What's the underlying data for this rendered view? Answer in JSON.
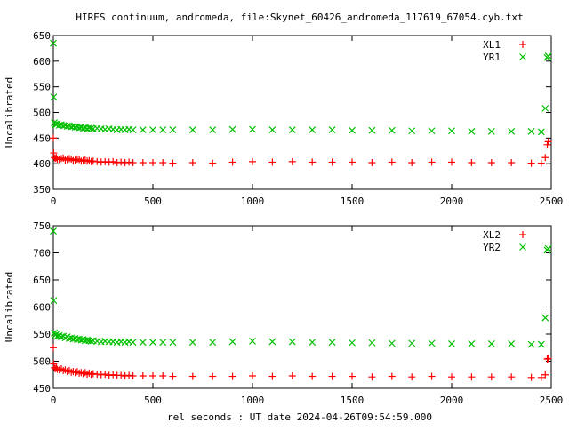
{
  "colors": {
    "series1": "#ff0000",
    "series2": "#00c000",
    "axis": "#000000",
    "background": "#ffffff"
  },
  "chart_data": [
    {
      "type": "scatter",
      "title": "HIRES continuum, andromeda, file:Skynet_60426_andromeda_117619_67054.cyb.txt",
      "xlabel": "",
      "ylabel": "Uncalibrated",
      "xlim": [
        0,
        2500
      ],
      "ylim": [
        350,
        650
      ],
      "xticks": [
        "0",
        "500",
        "1000",
        "1500",
        "2000",
        "2500"
      ],
      "yticks": [
        "350",
        "400",
        "450",
        "500",
        "550",
        "600",
        "650"
      ],
      "grid": false,
      "legend_position": "top-right",
      "series": [
        {
          "name": "XL1",
          "marker": "plus",
          "x": [
            0,
            2,
            5,
            10,
            15,
            20,
            30,
            40,
            50,
            60,
            70,
            80,
            90,
            100,
            110,
            120,
            130,
            140,
            150,
            160,
            170,
            180,
            190,
            200,
            220,
            240,
            260,
            280,
            300,
            320,
            340,
            360,
            380,
            400,
            450,
            500,
            550,
            600,
            700,
            800,
            900,
            1000,
            1100,
            1200,
            1300,
            1400,
            1500,
            1600,
            1700,
            1800,
            1900,
            2000,
            2100,
            2200,
            2300,
            2400,
            2450,
            2470,
            2480,
            2485
          ],
          "y": [
            450,
            421,
            412,
            410,
            412,
            409,
            408,
            410,
            411,
            407,
            408,
            410,
            409,
            406,
            407,
            409,
            408,
            405,
            406,
            407,
            405,
            406,
            404,
            405,
            404,
            403,
            404,
            403,
            404,
            402,
            403,
            402,
            403,
            402,
            402,
            402,
            402,
            401,
            402,
            401,
            403,
            404,
            403,
            404,
            403,
            403,
            403,
            402,
            403,
            402,
            403,
            403,
            402,
            402,
            402,
            401,
            401,
            412,
            437,
            443
          ]
        },
        {
          "name": "YR1",
          "marker": "cross",
          "x": [
            0,
            2,
            5,
            10,
            15,
            20,
            30,
            40,
            50,
            60,
            70,
            80,
            90,
            100,
            110,
            120,
            130,
            140,
            150,
            160,
            170,
            180,
            190,
            200,
            220,
            240,
            260,
            280,
            300,
            320,
            340,
            360,
            380,
            400,
            450,
            500,
            550,
            600,
            700,
            800,
            900,
            1000,
            1100,
            1200,
            1300,
            1400,
            1500,
            1600,
            1700,
            1800,
            1900,
            2000,
            2100,
            2200,
            2300,
            2400,
            2450,
            2470,
            2480,
            2485
          ],
          "y": [
            635,
            530,
            480,
            477,
            476,
            478,
            475,
            476,
            474,
            475,
            473,
            474,
            472,
            473,
            471,
            472,
            470,
            471,
            469,
            470,
            468,
            470,
            469,
            468,
            469,
            468,
            467,
            468,
            467,
            466,
            467,
            466,
            467,
            466,
            466,
            466,
            466,
            466,
            466,
            466,
            467,
            467,
            466,
            466,
            466,
            466,
            465,
            465,
            465,
            464,
            464,
            464,
            463,
            463,
            463,
            463,
            462,
            508,
            607,
            610
          ]
        }
      ]
    },
    {
      "type": "scatter",
      "title": "",
      "xlabel": "rel seconds : UT date 2024-04-26T09:54:59.000",
      "ylabel": "Uncalibrated",
      "xlim": [
        0,
        2500
      ],
      "ylim": [
        450,
        750
      ],
      "xticks": [
        "0",
        "500",
        "1000",
        "1500",
        "2000",
        "2500"
      ],
      "yticks": [
        "450",
        "500",
        "550",
        "600",
        "650",
        "700",
        "750"
      ],
      "grid": false,
      "legend_position": "top-right",
      "series": [
        {
          "name": "XL2",
          "marker": "plus",
          "x": [
            0,
            2,
            5,
            10,
            15,
            20,
            30,
            40,
            50,
            60,
            70,
            80,
            90,
            100,
            110,
            120,
            130,
            140,
            150,
            160,
            170,
            180,
            190,
            200,
            220,
            240,
            260,
            280,
            300,
            320,
            340,
            360,
            380,
            400,
            450,
            500,
            550,
            600,
            700,
            800,
            900,
            1000,
            1100,
            1200,
            1300,
            1400,
            1500,
            1600,
            1700,
            1800,
            1900,
            2000,
            2100,
            2200,
            2300,
            2400,
            2450,
            2470,
            2480,
            2485
          ],
          "y": [
            525,
            495,
            488,
            486,
            488,
            485,
            484,
            486,
            483,
            484,
            481,
            483,
            480,
            481,
            479,
            481,
            478,
            479,
            477,
            479,
            476,
            478,
            476,
            477,
            476,
            475,
            476,
            474,
            475,
            474,
            474,
            473,
            474,
            473,
            473,
            473,
            473,
            472,
            472,
            472,
            472,
            473,
            472,
            473,
            472,
            472,
            472,
            471,
            472,
            471,
            472,
            471,
            471,
            471,
            471,
            470,
            470,
            475,
            504,
            505
          ]
        },
        {
          "name": "YR2",
          "marker": "cross",
          "x": [
            0,
            2,
            5,
            10,
            15,
            20,
            30,
            40,
            50,
            60,
            70,
            80,
            90,
            100,
            110,
            120,
            130,
            140,
            150,
            160,
            170,
            180,
            190,
            200,
            220,
            240,
            260,
            280,
            300,
            320,
            340,
            360,
            380,
            400,
            450,
            500,
            550,
            600,
            700,
            800,
            900,
            1000,
            1100,
            1200,
            1300,
            1400,
            1500,
            1600,
            1700,
            1800,
            1900,
            2000,
            2100,
            2200,
            2300,
            2400,
            2450,
            2470,
            2480,
            2485
          ],
          "y": [
            740,
            612,
            552,
            548,
            550,
            546,
            547,
            545,
            546,
            543,
            545,
            542,
            543,
            541,
            542,
            540,
            541,
            539,
            540,
            538,
            539,
            538,
            537,
            538,
            537,
            536,
            537,
            536,
            536,
            535,
            536,
            535,
            536,
            535,
            535,
            535,
            535,
            535,
            535,
            535,
            536,
            537,
            536,
            536,
            535,
            535,
            534,
            534,
            533,
            533,
            533,
            532,
            532,
            532,
            532,
            531,
            531,
            580,
            705,
            708
          ]
        }
      ]
    }
  ]
}
